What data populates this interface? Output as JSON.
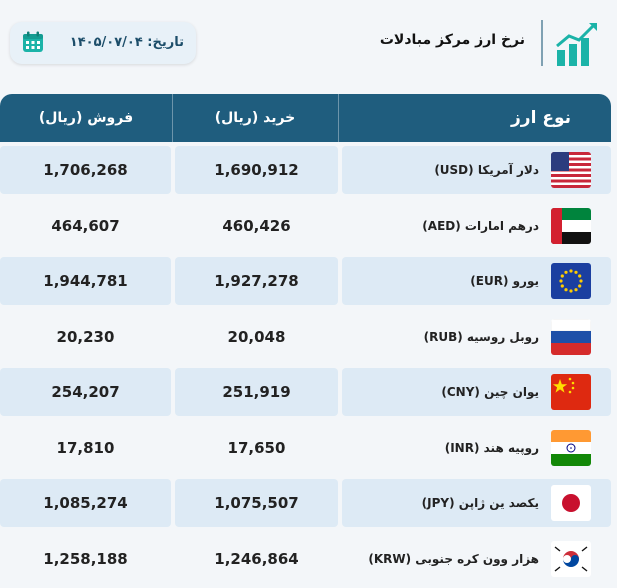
{
  "header": {
    "title": "نرخ ارز مرکز مبادلات",
    "date_label": "تاریخ: ۱۴۰۵/۰۷/۰۴"
  },
  "table": {
    "columns": {
      "currency": "نوع ارز",
      "buy": "خرید (ریال)",
      "sell": "فروش (ریال)"
    },
    "rows": [
      {
        "name": "دلار آمریکا (USD)",
        "buy": "1,690,912",
        "sell": "1,706,268",
        "flag": "usa-flag"
      },
      {
        "name": "درهم امارات (AED)",
        "buy": "460,426",
        "sell": "464,607",
        "flag": "uae-flag"
      },
      {
        "name": "یورو (EUR)",
        "buy": "1,927,278",
        "sell": "1,944,781",
        "flag": "eu-flag"
      },
      {
        "name": "روبل روسیه (RUB)",
        "buy": "20,048",
        "sell": "20,230",
        "flag": "russia-flag"
      },
      {
        "name": "یوان چین (CNY)",
        "buy": "251,919",
        "sell": "254,207",
        "flag": "china-flag"
      },
      {
        "name": "روپیه هند (INR)",
        "buy": "17,650",
        "sell": "17,810",
        "flag": "india-flag"
      },
      {
        "name": "یکصد ین ژاپن (JPY)",
        "buy": "1,075,507",
        "sell": "1,085,274",
        "flag": "japan-flag"
      },
      {
        "name": "هزار وون کره جنوبی (KRW)",
        "buy": "1,246,864",
        "sell": "1,258,188",
        "flag": "south-korea-flag"
      }
    ]
  },
  "colors": {
    "header_bg": "#1f5d7e",
    "row_alt": "#ddeaf5",
    "accent": "#1bb3a8"
  }
}
